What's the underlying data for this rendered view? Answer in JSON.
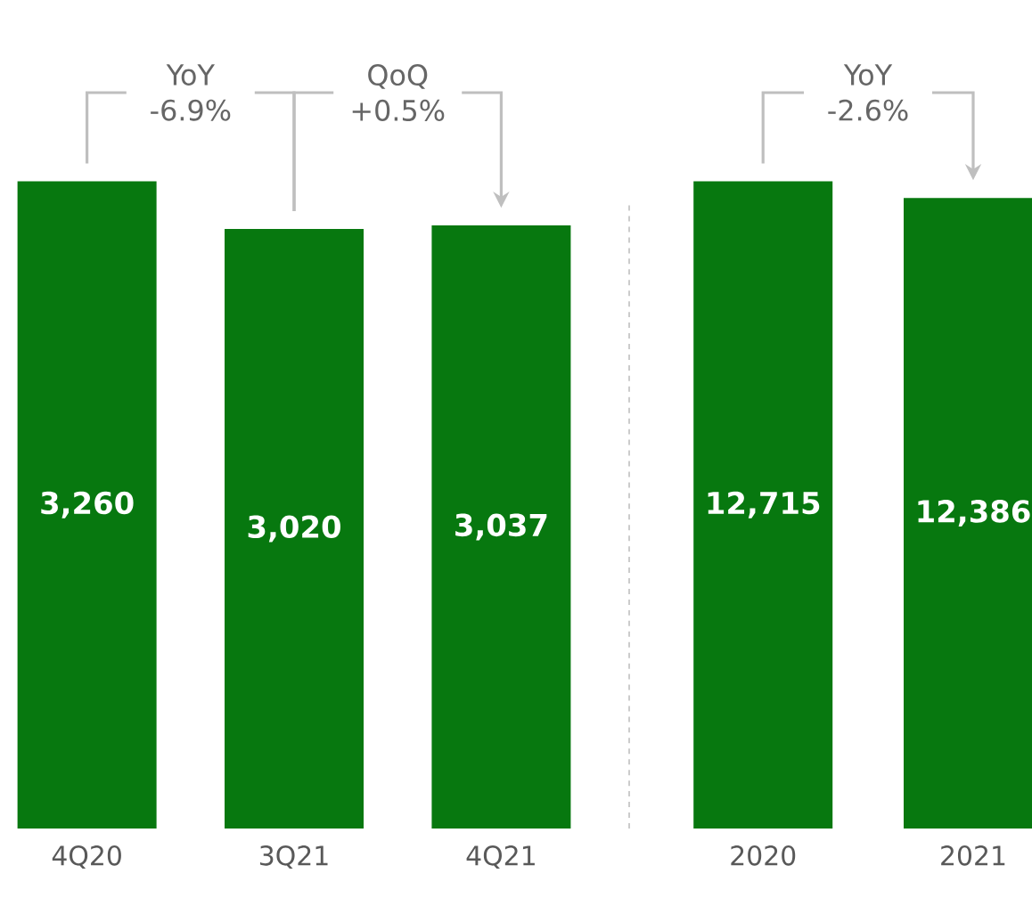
{
  "chart_data": [
    {
      "type": "bar",
      "categories": [
        "4Q20",
        "3Q21",
        "4Q21"
      ],
      "values": [
        3260,
        3020,
        3037
      ],
      "value_labels": [
        "3,260",
        "3,020",
        "3,037"
      ],
      "color": "#07780f",
      "annotations": [
        "YoY -6.9%",
        "QoQ +0.5%"
      ]
    },
    {
      "type": "bar",
      "categories": [
        "2020",
        "2021"
      ],
      "values": [
        12715,
        12386
      ],
      "value_labels": [
        "12,715",
        "12,386"
      ],
      "color": "#07780f",
      "annotations": [
        "YoY -2.6%"
      ]
    }
  ]
}
